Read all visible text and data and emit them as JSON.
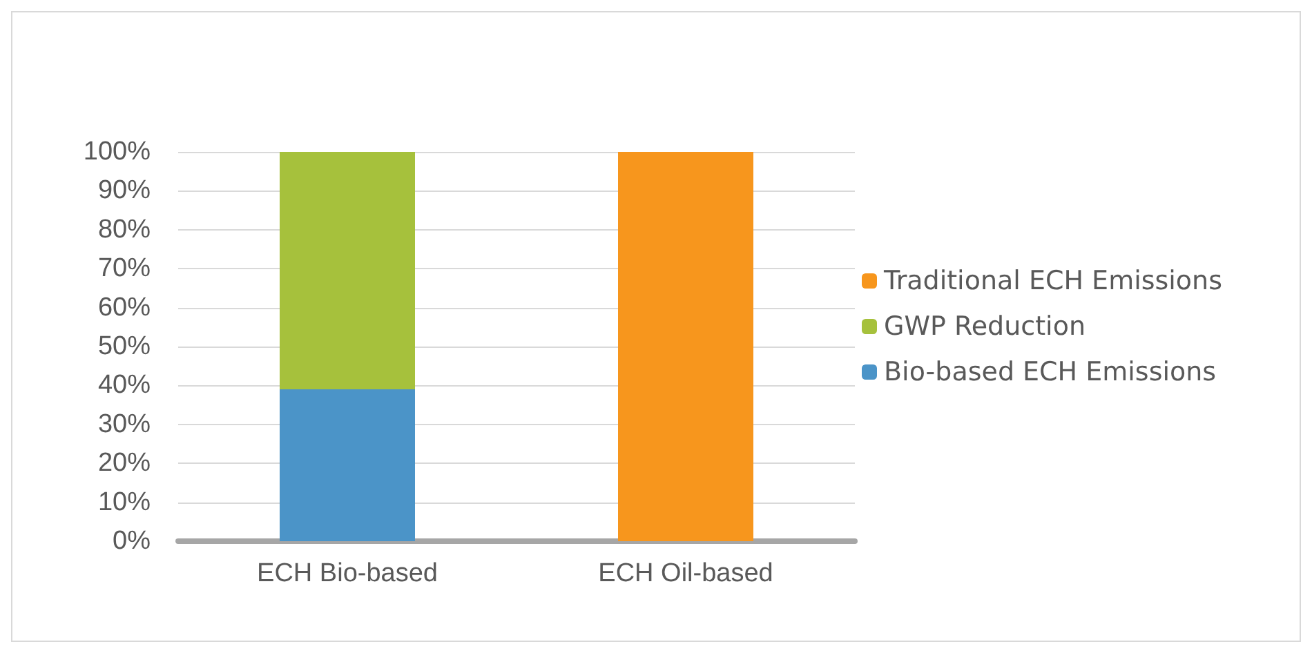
{
  "chart_data": {
    "type": "bar",
    "stacked": true,
    "categories": [
      "ECH Bio-based",
      "ECH Oil-based"
    ],
    "series": [
      {
        "name": "Bio-based ECH Emissions",
        "color": "#4b94c8",
        "values": [
          39,
          0
        ]
      },
      {
        "name": "GWP Reduction",
        "color": "#a6c13c",
        "values": [
          61,
          0
        ]
      },
      {
        "name": "Traditional ECH Emissions",
        "color": "#f7961d",
        "values": [
          0,
          100
        ]
      }
    ],
    "ylim": [
      0,
      100
    ],
    "yticks": [
      {
        "value": 0,
        "label": "0%"
      },
      {
        "value": 10,
        "label": "10%"
      },
      {
        "value": 20,
        "label": "20%"
      },
      {
        "value": 30,
        "label": "30%"
      },
      {
        "value": 40,
        "label": "40%"
      },
      {
        "value": 50,
        "label": "50%"
      },
      {
        "value": 60,
        "label": "60%"
      },
      {
        "value": 70,
        "label": "70%"
      },
      {
        "value": 80,
        "label": "80%"
      },
      {
        "value": 90,
        "label": "90%"
      },
      {
        "value": 100,
        "label": "100%"
      }
    ],
    "grid": "y",
    "legend": "right"
  }
}
